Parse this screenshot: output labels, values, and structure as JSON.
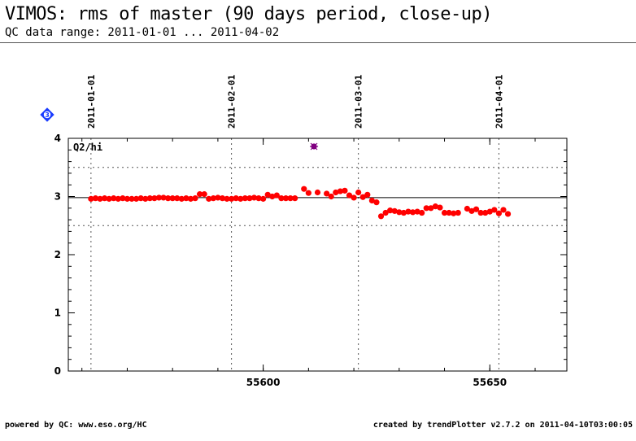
{
  "header": {
    "title": "VIMOS: rms of master (90 days period, close-up)",
    "subtitle": "QC data range: 2011-01-01 ... 2011-04-02"
  },
  "badge": {
    "label": "3",
    "icon": "blue-diamond-icon",
    "color": "#1a3cff"
  },
  "footer": {
    "left": "powered by QC: www.eso.org/HC",
    "right": "created by trendPlotter v2.7.2 on 2011-04-10T03:00:05"
  },
  "colors": {
    "data": "#ff0000",
    "outlier": "#800080",
    "reference": "#000000",
    "grid": "#555555"
  },
  "chart_data": {
    "type": "scatter",
    "panel_label": "Q2/hi",
    "xlim": [
      55557,
      55667
    ],
    "ylim": [
      0,
      4
    ],
    "x_ticks": [
      55600,
      55650
    ],
    "y_ticks": [
      0,
      1,
      2,
      3,
      4
    ],
    "date_markers": [
      {
        "label": "2011-01-01",
        "x": 55562
      },
      {
        "label": "2011-02-01",
        "x": 55593
      },
      {
        "label": "2011-03-01",
        "x": 55621
      },
      {
        "label": "2011-04-01",
        "x": 55652
      }
    ],
    "reference_line": 2.98,
    "threshold_lines": [
      2.5,
      3.5
    ],
    "series": [
      {
        "points": [
          [
            55562.0,
            2.96
          ],
          [
            55563.0,
            2.97
          ],
          [
            55564.0,
            2.96
          ],
          [
            55565.0,
            2.97
          ],
          [
            55566.0,
            2.96
          ],
          [
            55567.0,
            2.97
          ],
          [
            55568.0,
            2.96
          ],
          [
            55569.0,
            2.97
          ],
          [
            55570.0,
            2.96
          ],
          [
            55571.0,
            2.96
          ],
          [
            55572.0,
            2.96
          ],
          [
            55573.0,
            2.97
          ],
          [
            55574.0,
            2.96
          ],
          [
            55575.0,
            2.97
          ],
          [
            55576.0,
            2.97
          ],
          [
            55577.0,
            2.98
          ],
          [
            55578.0,
            2.98
          ],
          [
            55579.0,
            2.97
          ],
          [
            55580.0,
            2.97
          ],
          [
            55581.0,
            2.97
          ],
          [
            55582.0,
            2.96
          ],
          [
            55583.0,
            2.97
          ],
          [
            55584.0,
            2.96
          ],
          [
            55585.0,
            2.97
          ],
          [
            55586.0,
            3.04
          ],
          [
            55587.0,
            3.04
          ],
          [
            55588.0,
            2.96
          ],
          [
            55589.0,
            2.97
          ],
          [
            55590.0,
            2.98
          ],
          [
            55591.0,
            2.97
          ],
          [
            55592.0,
            2.96
          ],
          [
            55593.0,
            2.96
          ],
          [
            55594.0,
            2.97
          ],
          [
            55595.0,
            2.96
          ],
          [
            55596.0,
            2.97
          ],
          [
            55597.0,
            2.97
          ],
          [
            55598.0,
            2.98
          ],
          [
            55599.0,
            2.97
          ],
          [
            55600.0,
            2.96
          ],
          [
            55601.0,
            3.03
          ],
          [
            55602.0,
            3.0
          ],
          [
            55603.0,
            3.02
          ],
          [
            55604.0,
            2.97
          ],
          [
            55605.0,
            2.97
          ],
          [
            55606.0,
            2.97
          ],
          [
            55607.0,
            2.97
          ],
          [
            55609.0,
            3.13
          ],
          [
            55610.0,
            3.06
          ],
          [
            55612.0,
            3.07
          ],
          [
            55614.0,
            3.05
          ],
          [
            55615.0,
            3.0
          ],
          [
            55616.0,
            3.07
          ],
          [
            55617.0,
            3.09
          ],
          [
            55618.0,
            3.1
          ],
          [
            55619.0,
            3.02
          ],
          [
            55620.0,
            2.98
          ],
          [
            55621.0,
            3.07
          ],
          [
            55622.0,
            2.99
          ],
          [
            55623.0,
            3.03
          ],
          [
            55624.0,
            2.93
          ],
          [
            55625.0,
            2.9
          ],
          [
            55626.0,
            2.66
          ],
          [
            55627.0,
            2.72
          ],
          [
            55628.0,
            2.76
          ],
          [
            55629.0,
            2.75
          ],
          [
            55630.0,
            2.73
          ],
          [
            55631.0,
            2.72
          ],
          [
            55632.0,
            2.74
          ],
          [
            55633.0,
            2.73
          ],
          [
            55634.0,
            2.74
          ],
          [
            55635.0,
            2.72
          ],
          [
            55636.0,
            2.8
          ],
          [
            55637.0,
            2.8
          ],
          [
            55638.0,
            2.83
          ],
          [
            55639.0,
            2.81
          ],
          [
            55640.0,
            2.72
          ],
          [
            55641.0,
            2.72
          ],
          [
            55642.0,
            2.71
          ],
          [
            55643.0,
            2.72
          ],
          [
            55645.0,
            2.79
          ],
          [
            55646.0,
            2.75
          ],
          [
            55647.0,
            2.78
          ],
          [
            55648.0,
            2.72
          ],
          [
            55649.0,
            2.72
          ],
          [
            55650.0,
            2.74
          ],
          [
            55651.0,
            2.77
          ],
          [
            55652.0,
            2.71
          ],
          [
            55653.0,
            2.77
          ],
          [
            55654.0,
            2.7
          ]
        ]
      },
      {
        "marker": "star",
        "points": [
          [
            55611.2,
            3.86
          ]
        ]
      }
    ]
  }
}
